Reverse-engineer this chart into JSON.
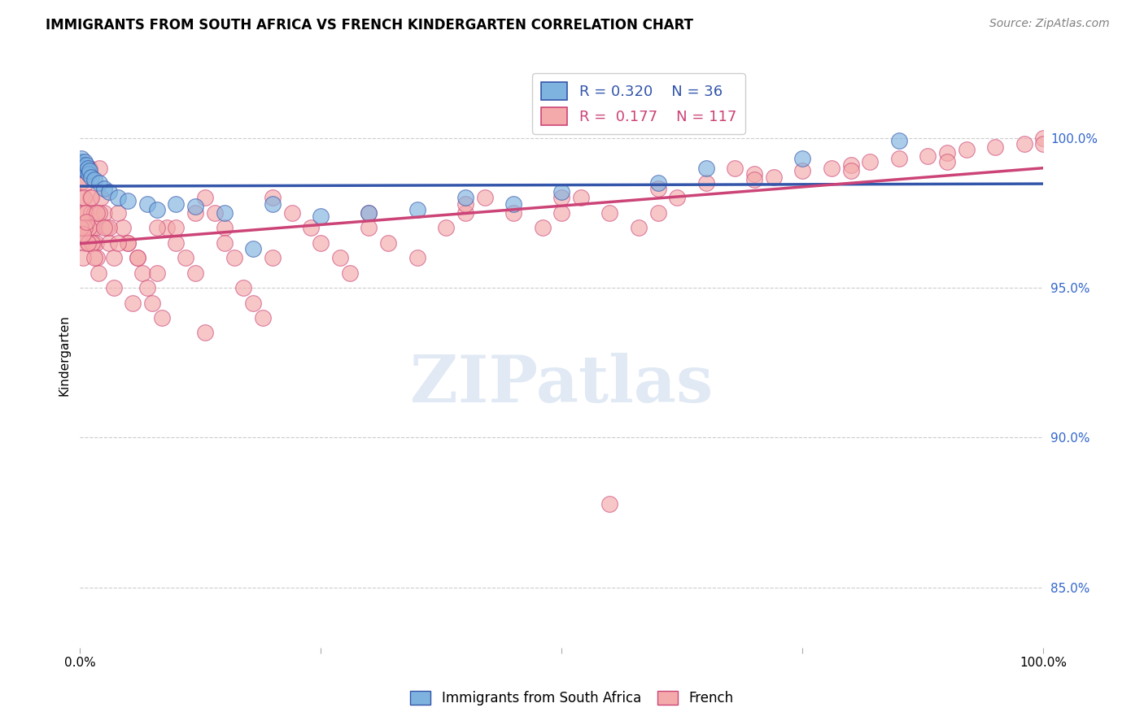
{
  "title": "IMMIGRANTS FROM SOUTH AFRICA VS FRENCH KINDERGARTEN CORRELATION CHART",
  "source": "Source: ZipAtlas.com",
  "ylabel": "Kindergarten",
  "xlim": [
    0.0,
    1.0
  ],
  "ylim": [
    0.83,
    1.025
  ],
  "legend_blue_R": "0.320",
  "legend_blue_N": "36",
  "legend_pink_R": "0.177",
  "legend_pink_N": "117",
  "blue_color": "#7EB3E0",
  "pink_color": "#F4AAAA",
  "trendline_blue_color": "#3355AA",
  "trendline_pink_color": "#CC4477",
  "blue_points_x": [
    0.0005,
    0.001,
    0.0015,
    0.002,
    0.003,
    0.004,
    0.005,
    0.006,
    0.007,
    0.008,
    0.009,
    0.01,
    0.012,
    0.015,
    0.02,
    0.025,
    0.03,
    0.04,
    0.05,
    0.07,
    0.08,
    0.1,
    0.12,
    0.15,
    0.18,
    0.2,
    0.25,
    0.3,
    0.35,
    0.4,
    0.45,
    0.5,
    0.6,
    0.65,
    0.75,
    0.85
  ],
  "blue_points_y": [
    0.992,
    0.991,
    0.99,
    0.993,
    0.991,
    0.99,
    0.992,
    0.989,
    0.991,
    0.99,
    0.988,
    0.989,
    0.987,
    0.986,
    0.985,
    0.983,
    0.982,
    0.98,
    0.979,
    0.978,
    0.976,
    0.978,
    0.977,
    0.975,
    0.963,
    0.978,
    0.974,
    0.975,
    0.976,
    0.98,
    0.978,
    0.982,
    0.985,
    0.99,
    0.993,
    0.999
  ],
  "pink_points_x": [
    0.001,
    0.002,
    0.003,
    0.004,
    0.005,
    0.006,
    0.007,
    0.008,
    0.009,
    0.01,
    0.011,
    0.012,
    0.013,
    0.014,
    0.015,
    0.016,
    0.017,
    0.018,
    0.019,
    0.02,
    0.022,
    0.025,
    0.028,
    0.03,
    0.035,
    0.04,
    0.045,
    0.05,
    0.06,
    0.065,
    0.07,
    0.075,
    0.08,
    0.09,
    0.1,
    0.11,
    0.12,
    0.13,
    0.14,
    0.15,
    0.16,
    0.17,
    0.18,
    0.19,
    0.2,
    0.22,
    0.24,
    0.25,
    0.27,
    0.28,
    0.3,
    0.32,
    0.35,
    0.38,
    0.4,
    0.42,
    0.45,
    0.48,
    0.5,
    0.52,
    0.55,
    0.58,
    0.6,
    0.62,
    0.65,
    0.68,
    0.7,
    0.72,
    0.75,
    0.78,
    0.8,
    0.82,
    0.85,
    0.88,
    0.9,
    0.92,
    0.95,
    0.98,
    1.0,
    0.002,
    0.004,
    0.006,
    0.009,
    0.013,
    0.02,
    0.03,
    0.05,
    0.08,
    0.12,
    0.003,
    0.005,
    0.008,
    0.012,
    0.018,
    0.025,
    0.04,
    0.06,
    0.1,
    0.15,
    0.2,
    0.3,
    0.4,
    0.5,
    0.6,
    0.7,
    0.8,
    0.9,
    1.0,
    0.001,
    0.003,
    0.007,
    0.015,
    0.035,
    0.055,
    0.085,
    0.13,
    0.55
  ],
  "pink_points_y": [
    0.985,
    0.98,
    0.975,
    0.97,
    0.965,
    0.985,
    0.975,
    0.97,
    0.965,
    0.99,
    0.98,
    0.975,
    0.97,
    0.965,
    0.975,
    0.97,
    0.965,
    0.96,
    0.955,
    0.99,
    0.98,
    0.975,
    0.97,
    0.965,
    0.96,
    0.975,
    0.97,
    0.965,
    0.96,
    0.955,
    0.95,
    0.945,
    0.955,
    0.97,
    0.965,
    0.96,
    0.955,
    0.98,
    0.975,
    0.97,
    0.96,
    0.95,
    0.945,
    0.94,
    0.98,
    0.975,
    0.97,
    0.965,
    0.96,
    0.955,
    0.97,
    0.965,
    0.96,
    0.97,
    0.975,
    0.98,
    0.975,
    0.97,
    0.975,
    0.98,
    0.975,
    0.97,
    0.975,
    0.98,
    0.985,
    0.99,
    0.988,
    0.987,
    0.989,
    0.99,
    0.991,
    0.992,
    0.993,
    0.994,
    0.995,
    0.996,
    0.997,
    0.998,
    1.0,
    0.97,
    0.98,
    0.975,
    0.97,
    0.965,
    0.975,
    0.97,
    0.965,
    0.97,
    0.975,
    0.96,
    0.97,
    0.965,
    0.98,
    0.975,
    0.97,
    0.965,
    0.96,
    0.97,
    0.965,
    0.96,
    0.975,
    0.978,
    0.98,
    0.983,
    0.986,
    0.989,
    0.992,
    0.998,
    0.97,
    0.968,
    0.972,
    0.96,
    0.95,
    0.945,
    0.94,
    0.935,
    0.878
  ]
}
